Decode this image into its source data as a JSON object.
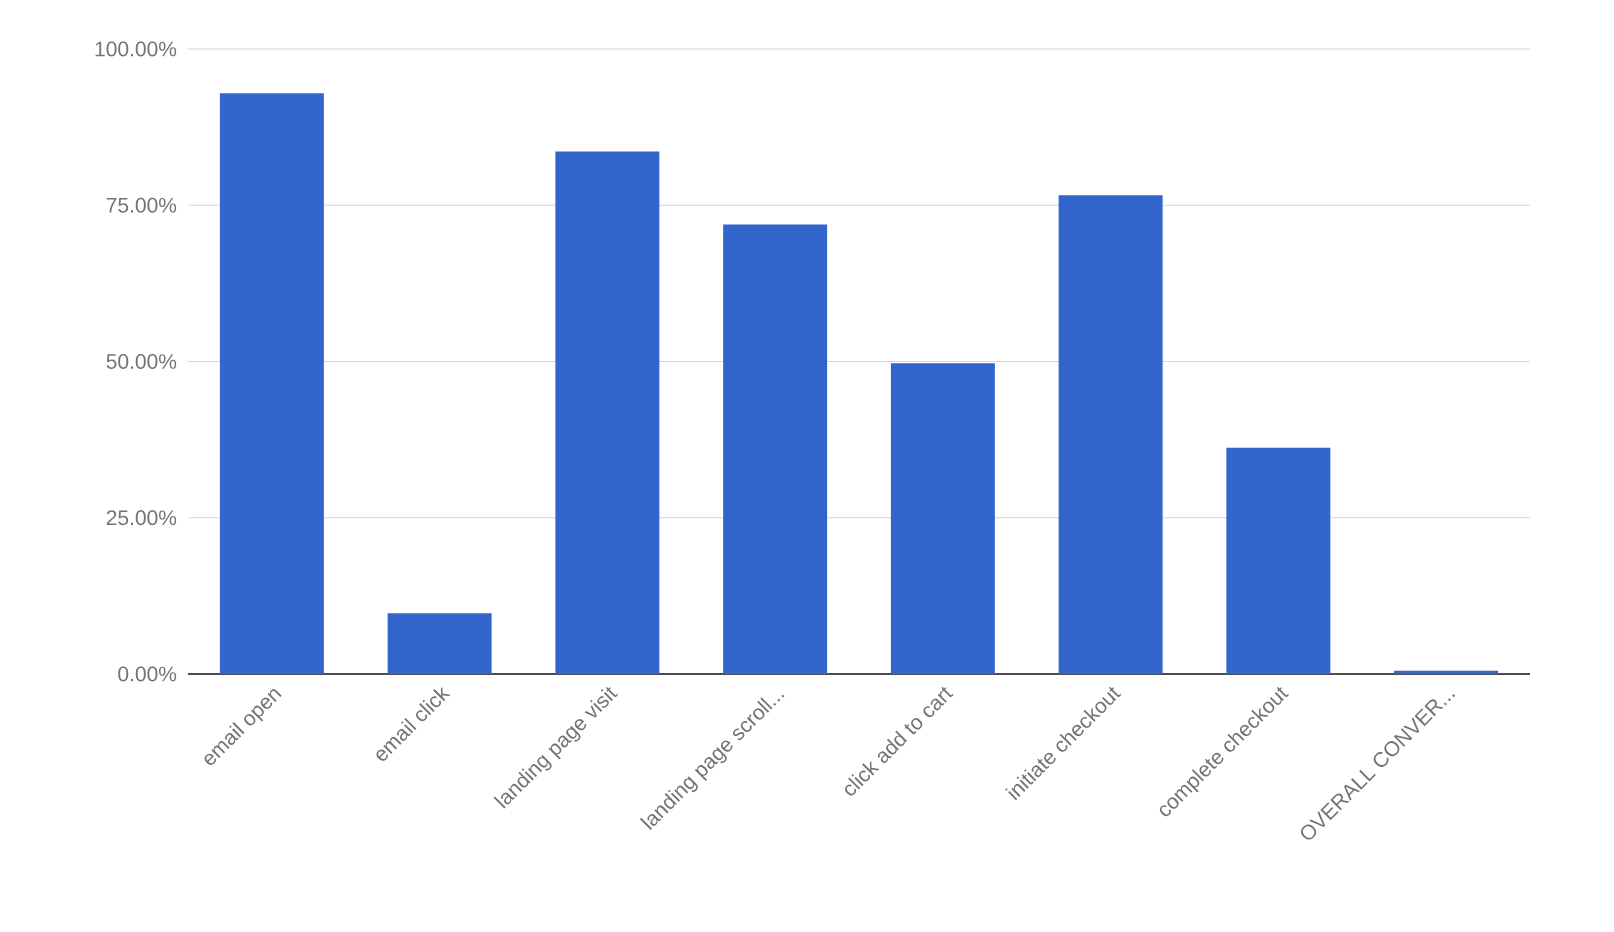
{
  "chart_data": {
    "type": "bar",
    "categories": [
      "email open",
      "email click",
      "landing page visit",
      "landing page scroll...",
      "click add to cart",
      "initiate checkout",
      "complete checkout",
      "OVERALL CONVER..."
    ],
    "values": [
      92.9,
      9.7,
      83.6,
      71.9,
      49.7,
      76.6,
      36.2,
      0.5
    ],
    "color": "#3366cc",
    "ylim": [
      0,
      100
    ],
    "yticks": [
      {
        "value": 0,
        "label": "0.00%"
      },
      {
        "value": 25,
        "label": "25.00%"
      },
      {
        "value": 50,
        "label": "50.00%"
      },
      {
        "value": 75,
        "label": "75.00%"
      },
      {
        "value": 100,
        "label": "100.00%"
      }
    ],
    "grid": "y"
  }
}
